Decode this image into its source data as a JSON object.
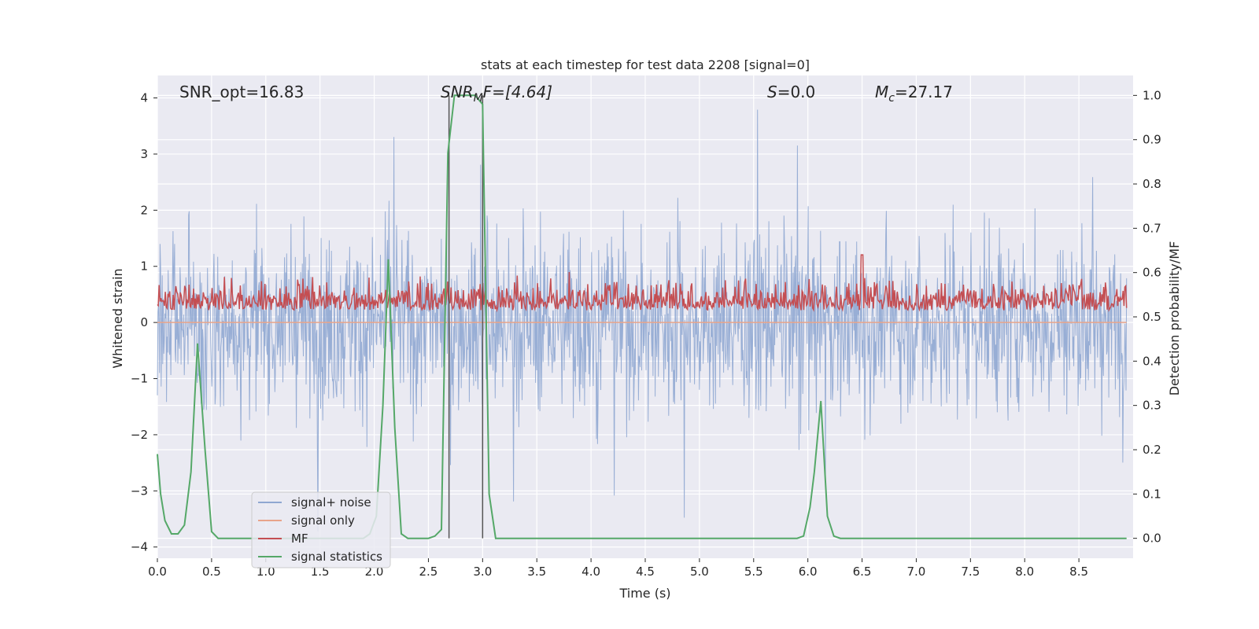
{
  "chart_data": {
    "type": "line",
    "title": "stats at each timestep for test data 2208 [signal=0]",
    "xlabel": "Time (s)",
    "ylabel": "Whitened strain",
    "y2label": "Detection probability/MF",
    "xlim": [
      0.0,
      9.0
    ],
    "ylim": [
      -4.2,
      4.4
    ],
    "y2lim": [
      -0.045,
      1.045
    ],
    "x_ticks": [
      0.0,
      0.5,
      1.0,
      1.5,
      2.0,
      2.5,
      3.0,
      3.5,
      4.0,
      4.5,
      5.0,
      5.5,
      6.0,
      6.5,
      7.0,
      7.5,
      8.0,
      8.5
    ],
    "x_tick_labels": [
      "0.0",
      "0.5",
      "1.0",
      "1.5",
      "2.0",
      "2.5",
      "3.0",
      "3.5",
      "4.0",
      "4.5",
      "5.0",
      "5.5",
      "6.0",
      "6.5",
      "7.0",
      "7.5",
      "8.0",
      "8.5"
    ],
    "y_ticks": [
      4,
      3,
      2,
      1,
      0,
      -1,
      -2,
      -3,
      -4
    ],
    "y_tick_labels": [
      "4",
      "3",
      "2",
      "1",
      "0",
      "−1",
      "−2",
      "−3",
      "−4"
    ],
    "y2_ticks": [
      1.0,
      0.9,
      0.8,
      0.7,
      0.6,
      0.5,
      0.4,
      0.3,
      0.2,
      0.1,
      0.0
    ],
    "y2_tick_labels": [
      "1.0",
      "0.9",
      "0.8",
      "0.7",
      "0.6",
      "0.5",
      "0.4",
      "0.3",
      "0.2",
      "0.1",
      "0.0"
    ],
    "grid": true,
    "legend_position": "lower-left",
    "annotations": {
      "snr_opt": "SNR_opt=16.83",
      "snr_mf_prefix": "SNR",
      "snr_mf_sub": "M",
      "snr_mf_suffix": "F=[4.64]",
      "s_sym": "S",
      "s_val": "=0.0",
      "mc_sym": "M",
      "mc_sub": "c",
      "mc_val": "=27.17"
    },
    "vertical_markers_x": [
      2.69,
      3.0
    ],
    "series": [
      {
        "name": "signal+ noise",
        "color": "#8fa7d1",
        "axis": "left",
        "envelope_note": "dense whitened noise, approx. range -3.5 to 4.0"
      },
      {
        "name": "signal only",
        "color": "#e8a48a",
        "axis": "left",
        "note": "flat near zero"
      },
      {
        "name": "MF",
        "color": "#c44e52",
        "axis": "right",
        "note": "fluctuates approx. 0.49 to 0.6, peak ~0.64 near t=6.5"
      },
      {
        "name": "signal statistics",
        "color": "#55a868",
        "axis": "right",
        "x": [
          0.0,
          0.03,
          0.07,
          0.13,
          0.19,
          0.25,
          0.31,
          0.37,
          0.44,
          0.5,
          0.56,
          1.0,
          1.5,
          1.9,
          1.96,
          2.02,
          2.08,
          2.13,
          2.19,
          2.25,
          2.31,
          2.37,
          2.5,
          2.56,
          2.62,
          2.68,
          2.74,
          2.8,
          2.87,
          2.93,
          3.0,
          3.06,
          3.12,
          3.18,
          3.5,
          4.0,
          5.0,
          5.9,
          5.96,
          6.02,
          6.06,
          6.12,
          6.18,
          6.24,
          6.3,
          7.0,
          8.0,
          8.94
        ],
        "values": [
          0.19,
          0.1,
          0.04,
          0.01,
          0.01,
          0.03,
          0.15,
          0.44,
          0.2,
          0.015,
          0.0,
          0.0,
          0.0,
          0.0,
          0.01,
          0.05,
          0.3,
          0.63,
          0.25,
          0.01,
          0.0,
          0.0,
          0.0,
          0.005,
          0.02,
          0.87,
          1.0,
          1.0,
          1.0,
          1.0,
          0.98,
          0.1,
          0.0,
          0.0,
          0.0,
          0.0,
          0.0,
          0.0,
          0.005,
          0.07,
          0.15,
          0.31,
          0.05,
          0.005,
          0.0,
          0.0,
          0.0,
          0.0
        ]
      }
    ]
  }
}
